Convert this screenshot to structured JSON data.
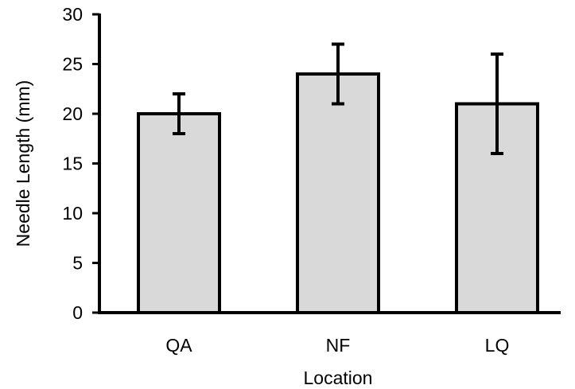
{
  "chart_data": {
    "type": "bar",
    "title": "",
    "xlabel": "Location",
    "ylabel": "Needle Length (mm)",
    "categories": [
      "QA",
      "NF",
      "LQ"
    ],
    "values": [
      20,
      24,
      21
    ],
    "error_low": [
      18,
      21,
      16
    ],
    "error_high": [
      22,
      27,
      26
    ],
    "ylim": [
      0,
      30
    ],
    "yticks": [
      0,
      5,
      10,
      15,
      20,
      25,
      30
    ],
    "grid": false,
    "legend": "none",
    "bar_color": "#d9d9d9",
    "edge_color": "#000000"
  }
}
